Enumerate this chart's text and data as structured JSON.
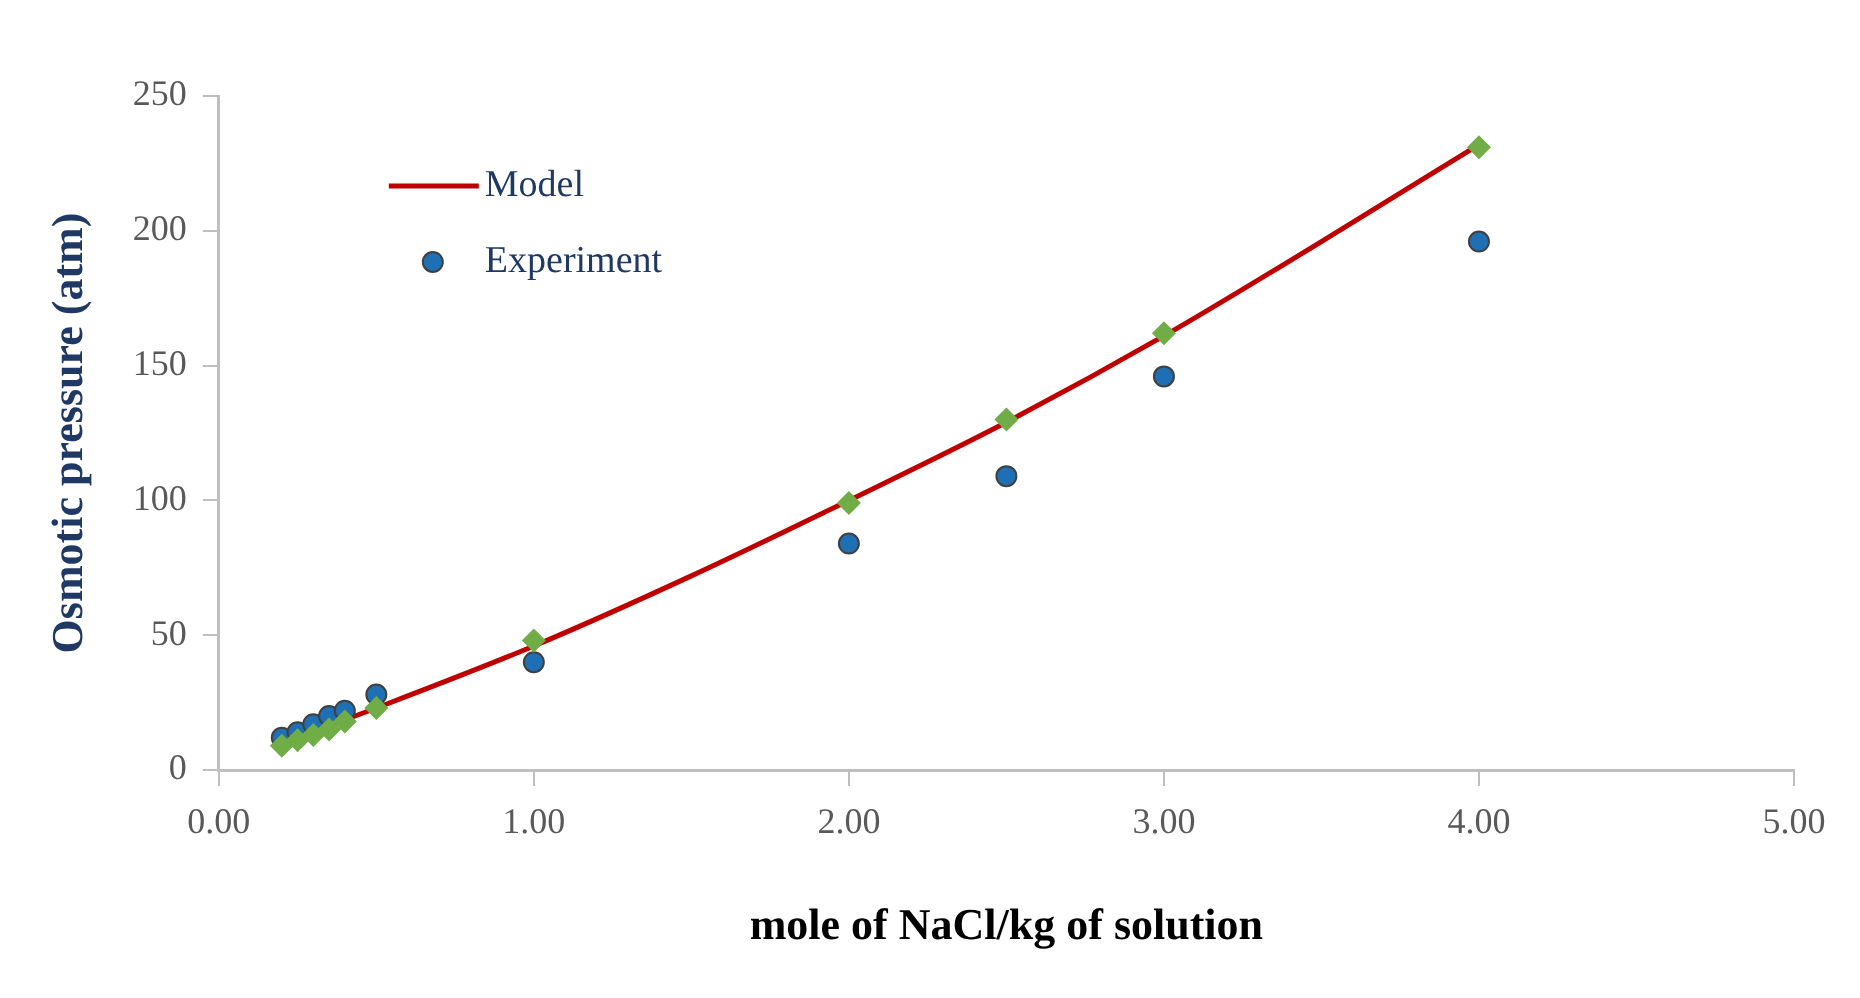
{
  "chart_data": {
    "type": "scatter",
    "xlabel": "mole of NaCl/kg of solution",
    "ylabel": "Osmotic pressure (atm)",
    "xlim": [
      0,
      5
    ],
    "xticks": [
      {
        "value": 0,
        "label": "0.00"
      },
      {
        "value": 1,
        "label": "1.00"
      },
      {
        "value": 2,
        "label": "2.00"
      },
      {
        "value": 3,
        "label": "3.00"
      },
      {
        "value": 4,
        "label": "4.00"
      },
      {
        "value": 5,
        "label": "5.00"
      }
    ],
    "ylim": [
      0,
      250
    ],
    "yticks": [
      0,
      50,
      100,
      150,
      200,
      250
    ],
    "grid": false,
    "legend": "top left",
    "series": [
      {
        "name": "Model",
        "type": "line",
        "color": "#c00000",
        "marker": "none",
        "line_style": "solid",
        "x": [
          0.2,
          0.5,
          1.0,
          1.5,
          2.0,
          2.5,
          3.0,
          3.5,
          4.0
        ],
        "values": [
          10,
          23,
          46,
          72,
          100,
          129,
          161,
          196,
          232
        ]
      },
      {
        "color": "#70ad47",
        "marker": "diamond",
        "x": [
          0.2,
          0.25,
          0.3,
          0.35,
          0.4,
          0.5,
          1.0,
          2.0,
          2.5,
          3.0,
          4.0
        ],
        "values": [
          9,
          11,
          13,
          15,
          18,
          23,
          48,
          99,
          130,
          162,
          231
        ]
      },
      {
        "name": "Experiment",
        "color": "#1f6fb5",
        "marker": "circle",
        "x": [
          0.2,
          0.25,
          0.3,
          0.35,
          0.4,
          0.5,
          1.0,
          2.0,
          2.5,
          3.0,
          4.0
        ],
        "values": [
          12,
          14,
          17,
          20,
          22,
          28,
          40,
          84,
          109,
          146,
          196
        ]
      }
    ]
  }
}
